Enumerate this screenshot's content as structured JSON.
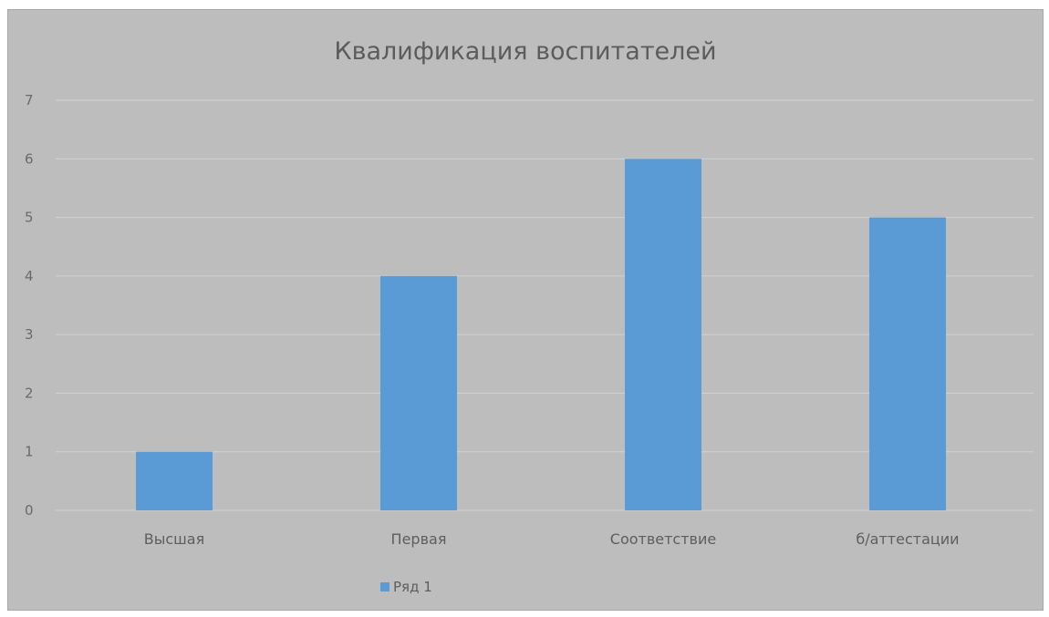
{
  "chart_data": {
    "type": "bar",
    "title": "Квалификация воспитателей",
    "categories": [
      "Высшая",
      "Первая",
      "Соответствие",
      "б/аттестации"
    ],
    "series": [
      {
        "name": "Ряд 1",
        "values": [
          1,
          4,
          6,
          5
        ]
      }
    ],
    "ylim": [
      0,
      7
    ],
    "yticks": [
      0,
      1,
      2,
      3,
      4,
      5,
      6,
      7
    ],
    "grid": true,
    "legend_position": "bottom",
    "xlabel": "",
    "ylabel": ""
  },
  "colors": {
    "bar": "#5b9bd5",
    "background": "#bdbdbd",
    "grid": "#d2d2d2"
  }
}
